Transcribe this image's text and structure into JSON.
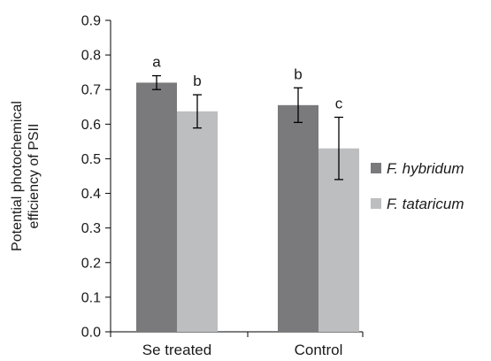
{
  "chart_data": {
    "type": "bar",
    "ylabel_lines": [
      "Potential photochemical",
      "efficiency of PSII"
    ],
    "xlabel": "",
    "ylim": [
      0,
      0.9
    ],
    "yticks": [
      0.0,
      0.1,
      0.2,
      0.3,
      0.4,
      0.5,
      0.6,
      0.7,
      0.8,
      0.9
    ],
    "ytick_labels": [
      "0.0",
      "0.1",
      "0.2",
      "0.3",
      "0.4",
      "0.5",
      "0.6",
      "0.7",
      "0.8",
      "0.9"
    ],
    "categories": [
      "Se treated",
      "Control"
    ],
    "grid": false,
    "legend_position": "right",
    "series": [
      {
        "name": "F. hybridum",
        "color": "#7a7a7c",
        "values": [
          0.72,
          0.655
        ],
        "errors": [
          0.02,
          0.05
        ],
        "sig_labels": [
          "a",
          "b"
        ]
      },
      {
        "name": "F. tataricum",
        "color": "#bcbec0",
        "values": [
          0.637,
          0.53
        ],
        "errors": [
          0.048,
          0.09
        ],
        "sig_labels": [
          "b",
          "c"
        ]
      }
    ]
  }
}
